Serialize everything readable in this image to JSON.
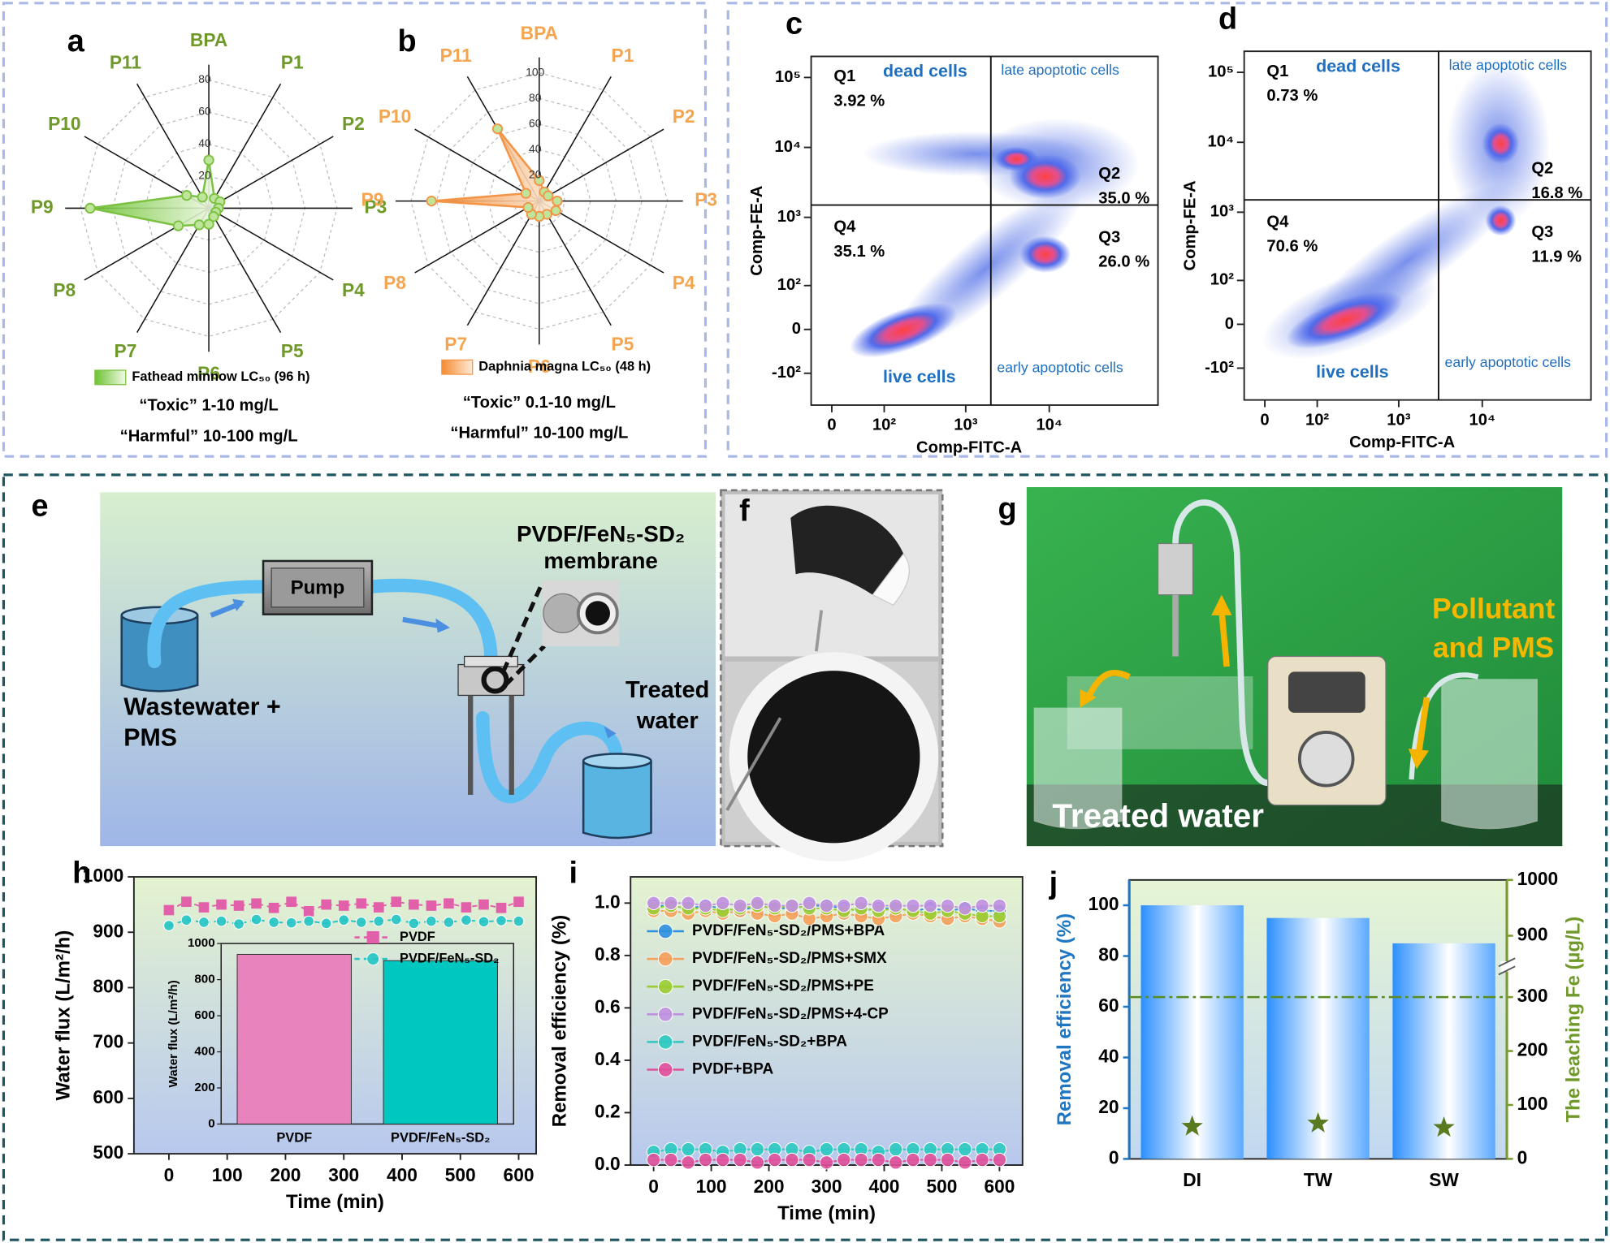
{
  "chart_data": [
    {
      "type": "radar",
      "panel": "a",
      "categories": [
        "BPA",
        "P1",
        "P2",
        "P3",
        "P4",
        "P5",
        "P6",
        "P7",
        "P8",
        "P9",
        "P10",
        "P11"
      ],
      "series": [
        {
          "name": "Fathead minnow LC₅₀ (96 h)",
          "color": "#7cc242",
          "values": [
            30,
            7,
            8,
            6,
            5,
            6,
            10,
            12,
            22,
            74,
            16,
            8
          ]
        }
      ],
      "rlim": [
        0,
        80
      ],
      "rticks": [
        20,
        40,
        60,
        80
      ],
      "label_color": "#6f9a2a",
      "annotations": [
        "“Toxic” 1-10 mg/L",
        "“Harmful” 10-100 mg/L"
      ]
    },
    {
      "type": "radar",
      "panel": "b",
      "categories": [
        "BPA",
        "P1",
        "P2",
        "P3",
        "P4",
        "P5",
        "P6",
        "P7",
        "P8",
        "P9",
        "P10",
        "P11"
      ],
      "series": [
        {
          "name": "Daphnia magna LC₅₀ (48 h)",
          "color": "#f39447",
          "values": [
            16,
            8,
            8,
            14,
            15,
            12,
            12,
            12,
            10,
            84,
            12,
            65
          ]
        }
      ],
      "rlim": [
        0,
        100
      ],
      "rticks": [
        20,
        40,
        60,
        80,
        100
      ],
      "label_color": "#f5a550",
      "annotations": [
        "“Toxic” 0.1-10 mg/L",
        "“Harmful” 10-100 mg/L"
      ]
    },
    {
      "type": "flow_cytometry",
      "panel": "c",
      "xlabel": "Comp-FITC-A",
      "ylabel": "Comp-FE-A",
      "scale": "biexponential",
      "xlim": [
        -30,
        200000
      ],
      "ylim": [
        -300,
        200000
      ],
      "xticks": [
        0,
        {
          "value": 100,
          "label": "10²"
        },
        {
          "value": 1000,
          "label": "10³"
        },
        {
          "value": 10000,
          "label": "10⁴"
        }
      ],
      "yticks": [
        {
          "value": -100,
          "label": "-10²"
        },
        0,
        {
          "value": 100,
          "label": "10²"
        },
        {
          "value": 1000,
          "label": "10³"
        },
        {
          "value": 10000,
          "label": "10⁴"
        },
        {
          "value": 100000,
          "label": "10⁵"
        }
      ],
      "gates": {
        "x": 2000,
        "y": 1500
      },
      "quadrants": [
        "Q1",
        "Q2",
        "Q3",
        "Q4"
      ],
      "values": [
        3.92,
        35.0,
        26.0,
        35.1
      ],
      "value_labels": [
        "3.92 %",
        "35.0 %",
        "26.0 %",
        "35.1 %"
      ],
      "regions": [
        "dead cells",
        "late apoptotic cells",
        "early apoptotic cells",
        "live cells"
      ]
    },
    {
      "type": "flow_cytometry",
      "panel": "d",
      "xlabel": "Comp-FITC-A",
      "ylabel": "Comp-FE-A",
      "scale": "biexponential",
      "xlim": [
        -30,
        200000
      ],
      "ylim": [
        -300,
        200000
      ],
      "xticks": [
        0,
        {
          "value": 100,
          "label": "10²"
        },
        {
          "value": 1000,
          "label": "10³"
        },
        {
          "value": 10000,
          "label": "10⁴"
        }
      ],
      "yticks": [
        {
          "value": -100,
          "label": "-10²"
        },
        0,
        {
          "value": 100,
          "label": "10²"
        },
        {
          "value": 1000,
          "label": "10³"
        },
        {
          "value": 10000,
          "label": "10⁴"
        },
        {
          "value": 100000,
          "label": "10⁵"
        }
      ],
      "gates": {
        "x": 3000,
        "y": 1500
      },
      "quadrants": [
        "Q1",
        "Q2",
        "Q3",
        "Q4"
      ],
      "values": [
        0.73,
        16.8,
        11.9,
        70.6
      ],
      "value_labels": [
        "0.73 %",
        "16.8 %",
        "11.9 %",
        "70.6 %"
      ],
      "regions": [
        "dead cells",
        "late apoptotic cells",
        "early apoptotic cells",
        "live cells"
      ]
    },
    {
      "type": "line",
      "panel": "h",
      "xlabel": "Time (min)",
      "ylabel": "Water flux (L/m²/h)",
      "x": [
        0,
        30,
        60,
        90,
        120,
        150,
        180,
        210,
        240,
        270,
        300,
        330,
        360,
        390,
        420,
        450,
        480,
        510,
        540,
        570,
        600
      ],
      "series": [
        {
          "name": "PVDF",
          "color": "#e25fa9",
          "marker": "square",
          "values": [
            940,
            955,
            945,
            950,
            948,
            952,
            944,
            955,
            938,
            950,
            948,
            952,
            945,
            955,
            950,
            948,
            952,
            945,
            950,
            944,
            955
          ]
        },
        {
          "name": "PVDF/FeN₅-SD₂",
          "color": "#22c4c4",
          "marker": "circle",
          "values": [
            912,
            922,
            918,
            920,
            915,
            923,
            918,
            917,
            920,
            916,
            922,
            918,
            920,
            923,
            916,
            920,
            918,
            922,
            919,
            921,
            920
          ]
        }
      ],
      "xlim": [
        -60,
        630
      ],
      "ylim": [
        500,
        1000
      ],
      "xticks": [
        0,
        100,
        200,
        300,
        400,
        500,
        600
      ],
      "yticks": [
        500,
        600,
        700,
        800,
        900,
        1000
      ],
      "inset": {
        "type": "bar",
        "ylabel": "Water flux (L/m²/h)",
        "categories": [
          "PVDF",
          "PVDF/FeN₅-SD₂"
        ],
        "values": [
          940,
          905
        ],
        "colors": [
          "#e883bd",
          "#00c8c0"
        ],
        "ylim": [
          0,
          1000
        ],
        "yticks": [
          0,
          200,
          400,
          600,
          800,
          1000
        ]
      }
    },
    {
      "type": "line",
      "panel": "i",
      "xlabel": "Time (min)",
      "ylabel": "Removal efficiency (%)",
      "x": [
        0,
        30,
        60,
        90,
        120,
        150,
        180,
        210,
        240,
        270,
        300,
        330,
        360,
        390,
        420,
        450,
        480,
        510,
        540,
        570,
        600
      ],
      "series": [
        {
          "name": "PVDF/FeN₅-SD₂/PMS+BPA",
          "color": "#2e8fe0",
          "marker": "circle",
          "values": [
            0.99,
            0.99,
            0.98,
            0.99,
            0.98,
            0.97,
            0.99,
            0.98,
            0.98,
            0.99,
            0.99,
            0.98,
            0.97,
            0.98,
            0.98,
            0.97,
            0.98,
            0.97,
            0.98,
            0.97,
            0.97
          ]
        },
        {
          "name": "PVDF/FeN₅-SD₂/PMS+SMX",
          "color": "#f5a05a",
          "marker": "circle",
          "values": [
            0.97,
            0.97,
            0.96,
            0.97,
            0.96,
            0.97,
            0.96,
            0.95,
            0.96,
            0.94,
            0.95,
            0.96,
            0.95,
            0.94,
            0.95,
            0.96,
            0.95,
            0.94,
            0.95,
            0.94,
            0.93
          ]
        },
        {
          "name": "PVDF/FeN₅-SD₂/PMS+PE",
          "color": "#9acd32",
          "marker": "circle",
          "values": [
            0.98,
            0.99,
            0.98,
            0.98,
            0.97,
            0.98,
            0.99,
            0.98,
            0.99,
            0.98,
            0.98,
            0.97,
            0.98,
            0.97,
            0.98,
            0.97,
            0.96,
            0.97,
            0.96,
            0.95,
            0.95
          ]
        },
        {
          "name": "PVDF/FeN₅-SD₂/PMS+4-CP",
          "color": "#c090e0",
          "marker": "circle",
          "values": [
            1.0,
            1.0,
            1.0,
            0.99,
            1.0,
            0.99,
            1.0,
            0.99,
            0.99,
            1.0,
            0.99,
            0.99,
            1.0,
            0.99,
            0.99,
            0.99,
            0.99,
            0.99,
            0.98,
            0.99,
            0.99
          ]
        },
        {
          "name": "PVDF/FeN₅-SD₂+BPA",
          "color": "#2cc9c0",
          "marker": "circle",
          "values": [
            0.05,
            0.06,
            0.06,
            0.06,
            0.05,
            0.06,
            0.06,
            0.06,
            0.06,
            0.05,
            0.06,
            0.06,
            0.06,
            0.05,
            0.06,
            0.06,
            0.06,
            0.06,
            0.06,
            0.06,
            0.06
          ]
        },
        {
          "name": "PVDF+BPA",
          "color": "#e0509a",
          "marker": "circle",
          "values": [
            0.02,
            0.02,
            0.01,
            0.02,
            0.02,
            0.02,
            0.01,
            0.02,
            0.02,
            0.02,
            0.01,
            0.02,
            0.02,
            0.02,
            0.01,
            0.02,
            0.02,
            0.02,
            0.01,
            0.02,
            0.02
          ]
        }
      ],
      "xlim": [
        -40,
        640
      ],
      "ylim": [
        0,
        1.1
      ],
      "xticks": [
        0,
        100,
        200,
        300,
        400,
        500,
        600
      ],
      "yticks": [
        {
          "value": 0,
          "label": "0.0"
        },
        {
          "value": 0.2,
          "label": "0.2"
        },
        {
          "value": 0.4,
          "label": "0.4"
        },
        {
          "value": 0.6,
          "label": "0.6"
        },
        {
          "value": 0.8,
          "label": "0.8"
        },
        {
          "value": 1,
          "label": "1.0"
        }
      ]
    },
    {
      "type": "bar_scatter",
      "panel": "j",
      "ylabel": "Removal efficiency (%)",
      "y2label": "The leaching Fe (µg/L)",
      "categories": [
        "DI",
        "TW",
        "SW"
      ],
      "series": [
        {
          "color": "#1e8fff",
          "values": [
            100,
            95,
            85
          ]
        },
        {
          "color": "#5a7a20",
          "marker": "star",
          "axis": "y2",
          "values": [
            60,
            66,
            58
          ]
        }
      ],
      "ylim": [
        0,
        110
      ],
      "yticks": [
        0,
        20,
        40,
        60,
        80,
        100
      ],
      "y2lim": [
        0,
        1000
      ],
      "y2ticks": [
        0,
        100,
        200,
        300,
        900,
        1000
      ],
      "y2break": [
        300,
        900
      ],
      "reference_line": {
        "value": 300,
        "axis": "y2",
        "color": "#5a8a20"
      }
    }
  ],
  "diagrams": {
    "e": {
      "panel": "e",
      "pump": "Pump",
      "membrane": "PVDF/FeN₅-SD₂ membrane",
      "inlet": "Wastewater + PMS",
      "outlet": "Treated water"
    },
    "f": {
      "panel": "f"
    },
    "g": {
      "panel": "g",
      "inlet": "Pollutant and PMS",
      "outlet": "Treated water"
    }
  }
}
